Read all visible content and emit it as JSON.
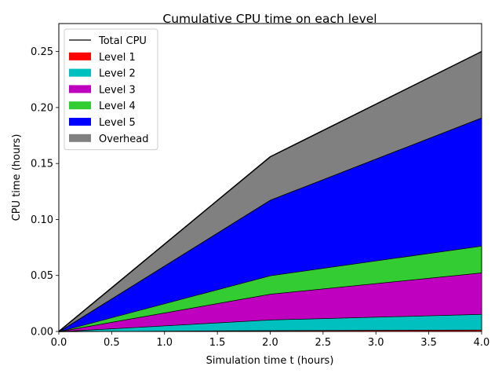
{
  "chart_data": {
    "type": "area",
    "stacked": true,
    "title": "Cumulative CPU time on each level",
    "xlabel": "Simulation time t (hours)",
    "ylabel": "CPU time (hours)",
    "xlim": [
      0,
      4
    ],
    "ylim": [
      0,
      0.275
    ],
    "x": [
      0,
      2,
      4
    ],
    "xticks": [
      "0.0",
      "0.5",
      "1.0",
      "1.5",
      "2.0",
      "2.5",
      "3.0",
      "3.5",
      "4.0"
    ],
    "yticks": [
      "0.00",
      "0.05",
      "0.10",
      "0.15",
      "0.20",
      "0.25"
    ],
    "grid": false,
    "legend_position": "top-left",
    "total_line": {
      "name": "Total CPU",
      "color": "#000000",
      "values": [
        0,
        0.156,
        0.25
      ]
    },
    "series": [
      {
        "name": "Level 1",
        "color": "#ff0000",
        "values": [
          0,
          0.001,
          0.0015
        ]
      },
      {
        "name": "Level 2",
        "color": "#00bfbf",
        "values": [
          0,
          0.0095,
          0.014
        ]
      },
      {
        "name": "Level 3",
        "color": "#bf00bf",
        "values": [
          0,
          0.023,
          0.037
        ]
      },
      {
        "name": "Level 4",
        "color": "#33cc33",
        "values": [
          0,
          0.0165,
          0.024
        ]
      },
      {
        "name": "Level 5",
        "color": "#0000ff",
        "values": [
          0,
          0.0675,
          0.1145
        ]
      },
      {
        "name": "Overhead",
        "color": "#808080",
        "values": [
          0,
          0.0385,
          0.059
        ]
      }
    ]
  }
}
